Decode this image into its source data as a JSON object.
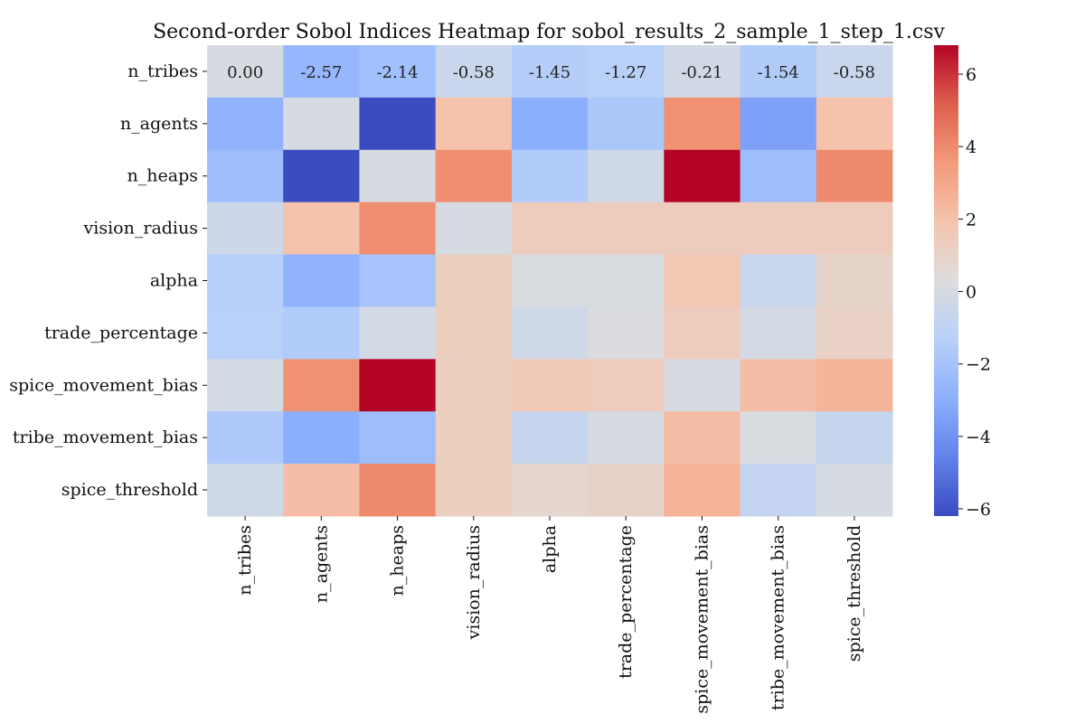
{
  "chart_data": {
    "type": "heatmap",
    "title": "Second-order Sobol Indices Heatmap for sobol_results_2_sample_1_step_1.csv",
    "xlabel": "",
    "ylabel": "",
    "x_categories": [
      "n_tribes",
      "n_agents",
      "n_heaps",
      "vision_radius",
      "alpha",
      "trade_percentage",
      "spice_movement_bias",
      "tribe_movement_bias",
      "spice_threshold"
    ],
    "y_categories": [
      "n_tribes",
      "n_agents",
      "n_heaps",
      "vision_radius",
      "alpha",
      "trade_percentage",
      "spice_movement_bias",
      "tribe_movement_bias",
      "spice_threshold"
    ],
    "values": [
      [
        0.0,
        -2.57,
        -2.14,
        -0.58,
        -1.45,
        -1.27,
        -0.21,
        -1.54,
        -0.58
      ],
      [
        -2.8,
        0.0,
        -6.2,
        2.0,
        -3.0,
        -1.8,
        3.8,
        -3.5,
        2.0
      ],
      [
        -2.3,
        -6.2,
        0.0,
        3.9,
        -1.6,
        -0.3,
        6.8,
        -2.3,
        4.0
      ],
      [
        -0.4,
        2.0,
        3.9,
        0.0,
        1.4,
        1.4,
        1.4,
        1.4,
        1.4
      ],
      [
        -1.4,
        -2.8,
        -2.0,
        1.3,
        0.1,
        0.1,
        1.7,
        -0.6,
        0.9
      ],
      [
        -1.3,
        -1.6,
        -0.1,
        1.3,
        -0.3,
        0.2,
        1.4,
        -0.1,
        1.1
      ],
      [
        -0.1,
        3.8,
        6.8,
        1.3,
        1.6,
        1.4,
        0.0,
        2.2,
        2.5
      ],
      [
        -1.7,
        -3.0,
        -2.3,
        1.3,
        -0.7,
        0.0,
        2.2,
        0.1,
        -0.7
      ],
      [
        -0.3,
        2.2,
        4.0,
        1.3,
        0.8,
        1.0,
        2.6,
        -0.8,
        0.0
      ]
    ],
    "annotated_row": 0,
    "annotations": [
      "0.00",
      "-2.57",
      "-2.14",
      "-0.58",
      "-1.45",
      "-1.27",
      "-0.21",
      "-1.54",
      "-0.58"
    ],
    "colormap": "coolwarm",
    "vmin": -6.2,
    "vmax": 6.8,
    "colorbar_ticks": [
      6,
      4,
      2,
      0,
      -2,
      -4,
      -6
    ],
    "colorbar_tick_labels": [
      "6",
      "4",
      "2",
      "0",
      "−2",
      "−4",
      "−6"
    ],
    "grid": false,
    "legend": "colorbar-right"
  }
}
